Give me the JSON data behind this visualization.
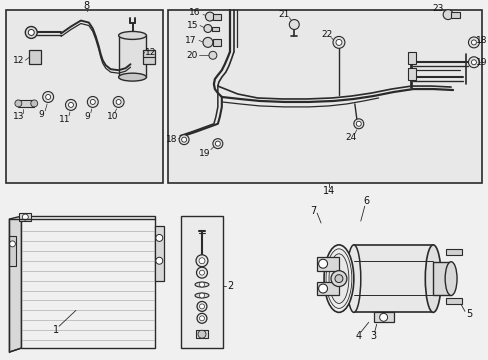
{
  "bg_color": "#f0f0f0",
  "box_fill": "#e8e8e8",
  "line_color": "#2a2a2a",
  "label_color": "#111111",
  "figsize": [
    4.89,
    3.6
  ],
  "dpi": 100,
  "white": "#ffffff",
  "gray_light": "#cccccc",
  "gray_mid": "#aaaaaa"
}
